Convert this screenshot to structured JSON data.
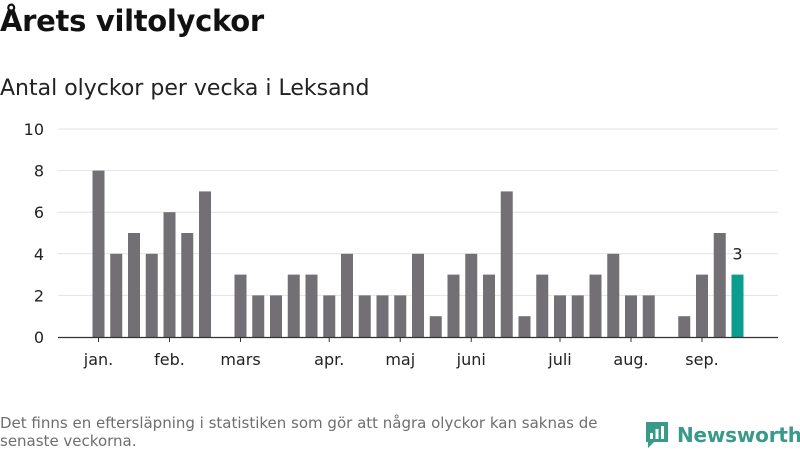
{
  "header": {
    "title": "Årets viltolyckor",
    "subtitle": "Antal olyckor per vecka i Leksand"
  },
  "footer": {
    "note": "Det finns en eftersläpning i statistiken som gör att några olyckor kan saknas de senaste veckorna."
  },
  "brand": {
    "name": "Newsworthy",
    "color": "#3a9a8a"
  },
  "chart_data": {
    "type": "bar",
    "title": "Antal olyckor per vecka i Leksand",
    "ylim": [
      0,
      10
    ],
    "yticks": [
      0,
      2,
      4,
      6,
      8,
      10
    ],
    "grid": true,
    "bar_color": "#727075",
    "highlight_color": "#0b9e8f",
    "x_tick_labels": [
      {
        "label": "jan.",
        "week": 1
      },
      {
        "label": "feb.",
        "week": 5
      },
      {
        "label": "mars",
        "week": 9
      },
      {
        "label": "apr.",
        "week": 14
      },
      {
        "label": "maj",
        "week": 18
      },
      {
        "label": "juni",
        "week": 22
      },
      {
        "label": "juli",
        "week": 27
      },
      {
        "label": "aug.",
        "week": 31
      },
      {
        "label": "sep.",
        "week": 35
      }
    ],
    "weeks": [
      1,
      2,
      3,
      4,
      5,
      6,
      7,
      8,
      9,
      10,
      11,
      12,
      13,
      14,
      15,
      16,
      17,
      18,
      19,
      20,
      21,
      22,
      23,
      24,
      25,
      26,
      27,
      28,
      29,
      30,
      31,
      32,
      33,
      34,
      35,
      36,
      37
    ],
    "values": [
      8,
      4,
      5,
      4,
      6,
      5,
      7,
      0,
      3,
      2,
      2,
      3,
      3,
      2,
      4,
      2,
      2,
      2,
      4,
      1,
      3,
      4,
      3,
      7,
      1,
      3,
      2,
      2,
      3,
      4,
      2,
      2,
      0,
      1,
      3,
      5,
      3
    ],
    "highlight_index": 36,
    "highlight_label": "3"
  }
}
